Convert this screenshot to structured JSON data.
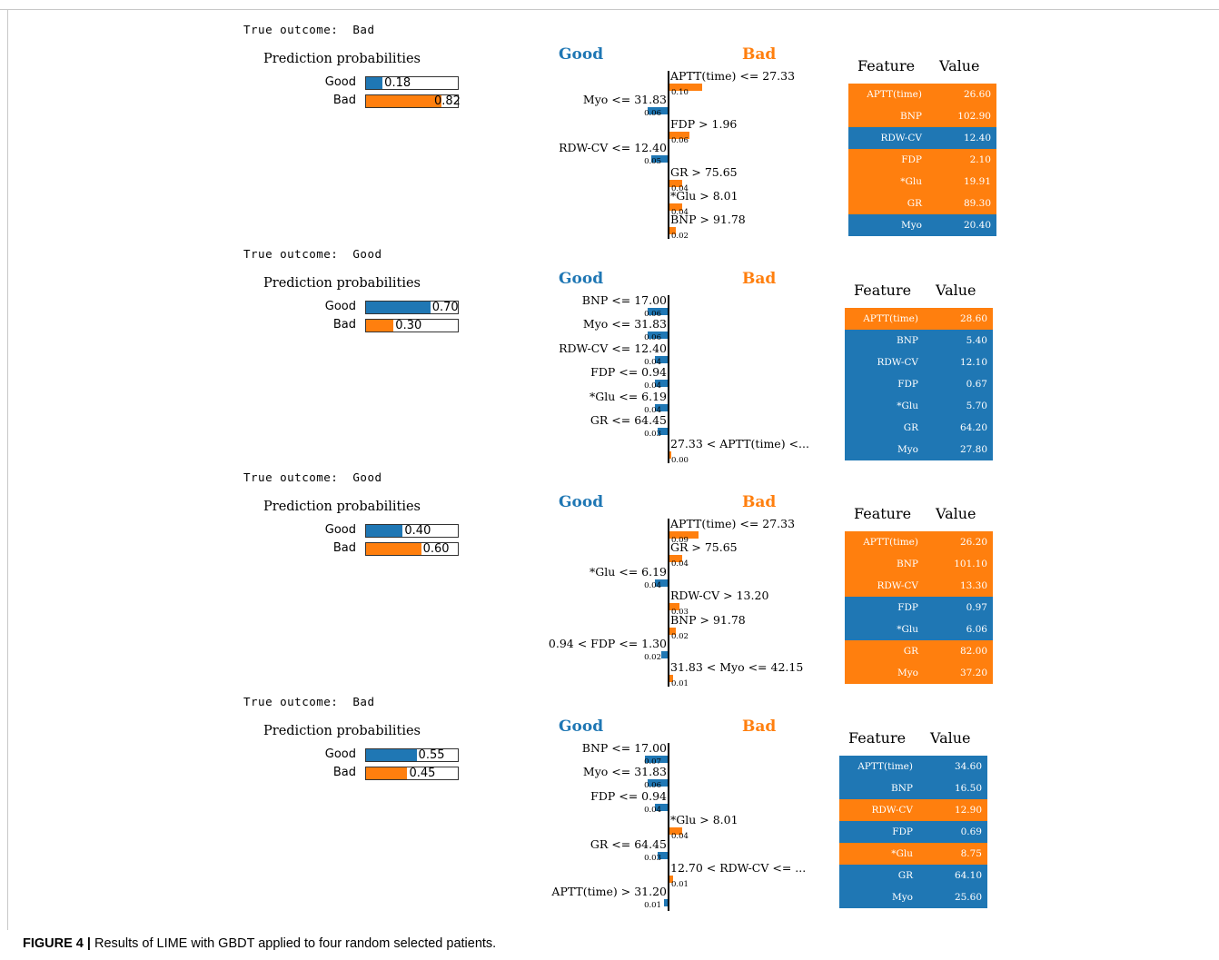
{
  "colors": {
    "good": "#1f77b4",
    "bad": "#ff7f0e"
  },
  "caption": {
    "label": "FIGURE 4 |",
    "text": "Results of LIME with GBDT applied to four random selected patients."
  },
  "chart_data": [
    {
      "type": "bar",
      "true_outcome_label": "True outcome:",
      "true_outcome": "Bad",
      "probabilities_title": "Prediction probabilities",
      "probabilities": [
        {
          "label": "Good",
          "value": 0.18,
          "value_text": "0.18"
        },
        {
          "label": "Bad",
          "value": 0.82,
          "value_text": "0.82"
        }
      ],
      "class_labels": {
        "negative": "Good",
        "positive": "Bad"
      },
      "explanations": [
        {
          "feature": "APTT(time) <= 27.33",
          "weight": 0.1,
          "weight_text": "0.10",
          "side": "Bad"
        },
        {
          "feature": "Myo <= 31.83",
          "weight": 0.06,
          "weight_text": "0.06",
          "side": "Good"
        },
        {
          "feature": "FDP > 1.96",
          "weight": 0.06,
          "weight_text": "0.06",
          "side": "Bad"
        },
        {
          "feature": "RDW-CV <= 12.40",
          "weight": 0.05,
          "weight_text": "0.05",
          "side": "Good"
        },
        {
          "feature": "GR > 75.65",
          "weight": 0.04,
          "weight_text": "0.04",
          "side": "Bad"
        },
        {
          "feature": "*Glu > 8.01",
          "weight": 0.04,
          "weight_text": "0.04",
          "side": "Bad"
        },
        {
          "feature": "BNP > 91.78",
          "weight": 0.02,
          "weight_text": "0.02",
          "side": "Bad"
        }
      ],
      "table_headers": [
        "Feature",
        "Value"
      ],
      "table": [
        {
          "feature": "APTT(time)",
          "value": "26.60",
          "side": "Bad"
        },
        {
          "feature": "BNP",
          "value": "102.90",
          "side": "Bad"
        },
        {
          "feature": "RDW-CV",
          "value": "12.40",
          "side": "Good"
        },
        {
          "feature": "FDP",
          "value": "2.10",
          "side": "Bad"
        },
        {
          "feature": "*Glu",
          "value": "19.91",
          "side": "Bad"
        },
        {
          "feature": "GR",
          "value": "89.30",
          "side": "Bad"
        },
        {
          "feature": "Myo",
          "value": "20.40",
          "side": "Good"
        }
      ]
    },
    {
      "type": "bar",
      "true_outcome_label": "True outcome:",
      "true_outcome": "Good",
      "probabilities_title": "Prediction probabilities",
      "probabilities": [
        {
          "label": "Good",
          "value": 0.7,
          "value_text": "0.70"
        },
        {
          "label": "Bad",
          "value": 0.3,
          "value_text": "0.30"
        }
      ],
      "class_labels": {
        "negative": "Good",
        "positive": "Bad"
      },
      "explanations": [
        {
          "feature": "BNP <= 17.00",
          "weight": 0.06,
          "weight_text": "0.06",
          "side": "Good"
        },
        {
          "feature": "Myo <= 31.83",
          "weight": 0.06,
          "weight_text": "0.06",
          "side": "Good"
        },
        {
          "feature": "RDW-CV <= 12.40",
          "weight": 0.04,
          "weight_text": "0.04",
          "side": "Good"
        },
        {
          "feature": "FDP <= 0.94",
          "weight": 0.04,
          "weight_text": "0.04",
          "side": "Good"
        },
        {
          "feature": "*Glu <= 6.19",
          "weight": 0.04,
          "weight_text": "0.04",
          "side": "Good"
        },
        {
          "feature": "GR <= 64.45",
          "weight": 0.03,
          "weight_text": "0.03",
          "side": "Good"
        },
        {
          "feature": "27.33 < APTT(time) <...",
          "weight": 0.0,
          "weight_text": "0.00",
          "side": "Bad"
        }
      ],
      "table_headers": [
        "Feature",
        "Value"
      ],
      "table": [
        {
          "feature": "APTT(time)",
          "value": "28.60",
          "side": "Bad"
        },
        {
          "feature": "BNP",
          "value": "5.40",
          "side": "Good"
        },
        {
          "feature": "RDW-CV",
          "value": "12.10",
          "side": "Good"
        },
        {
          "feature": "FDP",
          "value": "0.67",
          "side": "Good"
        },
        {
          "feature": "*Glu",
          "value": "5.70",
          "side": "Good"
        },
        {
          "feature": "GR",
          "value": "64.20",
          "side": "Good"
        },
        {
          "feature": "Myo",
          "value": "27.80",
          "side": "Good"
        }
      ]
    },
    {
      "type": "bar",
      "true_outcome_label": "True outcome:",
      "true_outcome": "Good",
      "probabilities_title": "Prediction probabilities",
      "probabilities": [
        {
          "label": "Good",
          "value": 0.4,
          "value_text": "0.40"
        },
        {
          "label": "Bad",
          "value": 0.6,
          "value_text": "0.60"
        }
      ],
      "class_labels": {
        "negative": "Good",
        "positive": "Bad"
      },
      "explanations": [
        {
          "feature": "APTT(time) <= 27.33",
          "weight": 0.09,
          "weight_text": "0.09",
          "side": "Bad"
        },
        {
          "feature": "GR > 75.65",
          "weight": 0.04,
          "weight_text": "0.04",
          "side": "Bad"
        },
        {
          "feature": "*Glu <= 6.19",
          "weight": 0.04,
          "weight_text": "0.04",
          "side": "Good"
        },
        {
          "feature": "RDW-CV > 13.20",
          "weight": 0.03,
          "weight_text": "0.03",
          "side": "Bad"
        },
        {
          "feature": "BNP > 91.78",
          "weight": 0.02,
          "weight_text": "0.02",
          "side": "Bad"
        },
        {
          "feature": "0.94 < FDP <= 1.30",
          "weight": 0.02,
          "weight_text": "0.02",
          "side": "Good"
        },
        {
          "feature": "31.83 < Myo <= 42.15",
          "weight": 0.01,
          "weight_text": "0.01",
          "side": "Bad"
        }
      ],
      "table_headers": [
        "Feature",
        "Value"
      ],
      "table": [
        {
          "feature": "APTT(time)",
          "value": "26.20",
          "side": "Bad"
        },
        {
          "feature": "BNP",
          "value": "101.10",
          "side": "Bad"
        },
        {
          "feature": "RDW-CV",
          "value": "13.30",
          "side": "Bad"
        },
        {
          "feature": "FDP",
          "value": "0.97",
          "side": "Good"
        },
        {
          "feature": "*Glu",
          "value": "6.06",
          "side": "Good"
        },
        {
          "feature": "GR",
          "value": "82.00",
          "side": "Bad"
        },
        {
          "feature": "Myo",
          "value": "37.20",
          "side": "Bad"
        }
      ]
    },
    {
      "type": "bar",
      "true_outcome_label": "True outcome:",
      "true_outcome": "Bad",
      "probabilities_title": "Prediction probabilities",
      "probabilities": [
        {
          "label": "Good",
          "value": 0.55,
          "value_text": "0.55"
        },
        {
          "label": "Bad",
          "value": 0.45,
          "value_text": "0.45"
        }
      ],
      "class_labels": {
        "negative": "Good",
        "positive": "Bad"
      },
      "explanations": [
        {
          "feature": "BNP <= 17.00",
          "weight": 0.07,
          "weight_text": "0.07",
          "side": "Good"
        },
        {
          "feature": "Myo <= 31.83",
          "weight": 0.06,
          "weight_text": "0.06",
          "side": "Good"
        },
        {
          "feature": "FDP <= 0.94",
          "weight": 0.04,
          "weight_text": "0.04",
          "side": "Good"
        },
        {
          "feature": "*Glu > 8.01",
          "weight": 0.04,
          "weight_text": "0.04",
          "side": "Bad"
        },
        {
          "feature": "GR <= 64.45",
          "weight": 0.03,
          "weight_text": "0.03",
          "side": "Good"
        },
        {
          "feature": "12.70 < RDW-CV <= ...",
          "weight": 0.01,
          "weight_text": "0.01",
          "side": "Bad"
        },
        {
          "feature": "APTT(time) > 31.20",
          "weight": 0.01,
          "weight_text": "0.01",
          "side": "Good"
        }
      ],
      "table_headers": [
        "Feature",
        "Value"
      ],
      "table": [
        {
          "feature": "APTT(time)",
          "value": "34.60",
          "side": "Good"
        },
        {
          "feature": "BNP",
          "value": "16.50",
          "side": "Good"
        },
        {
          "feature": "RDW-CV",
          "value": "12.90",
          "side": "Bad"
        },
        {
          "feature": "FDP",
          "value": "0.69",
          "side": "Good"
        },
        {
          "feature": "*Glu",
          "value": "8.75",
          "side": "Bad"
        },
        {
          "feature": "GR",
          "value": "64.10",
          "side": "Good"
        },
        {
          "feature": "Myo",
          "value": "25.60",
          "side": "Good"
        }
      ]
    }
  ]
}
